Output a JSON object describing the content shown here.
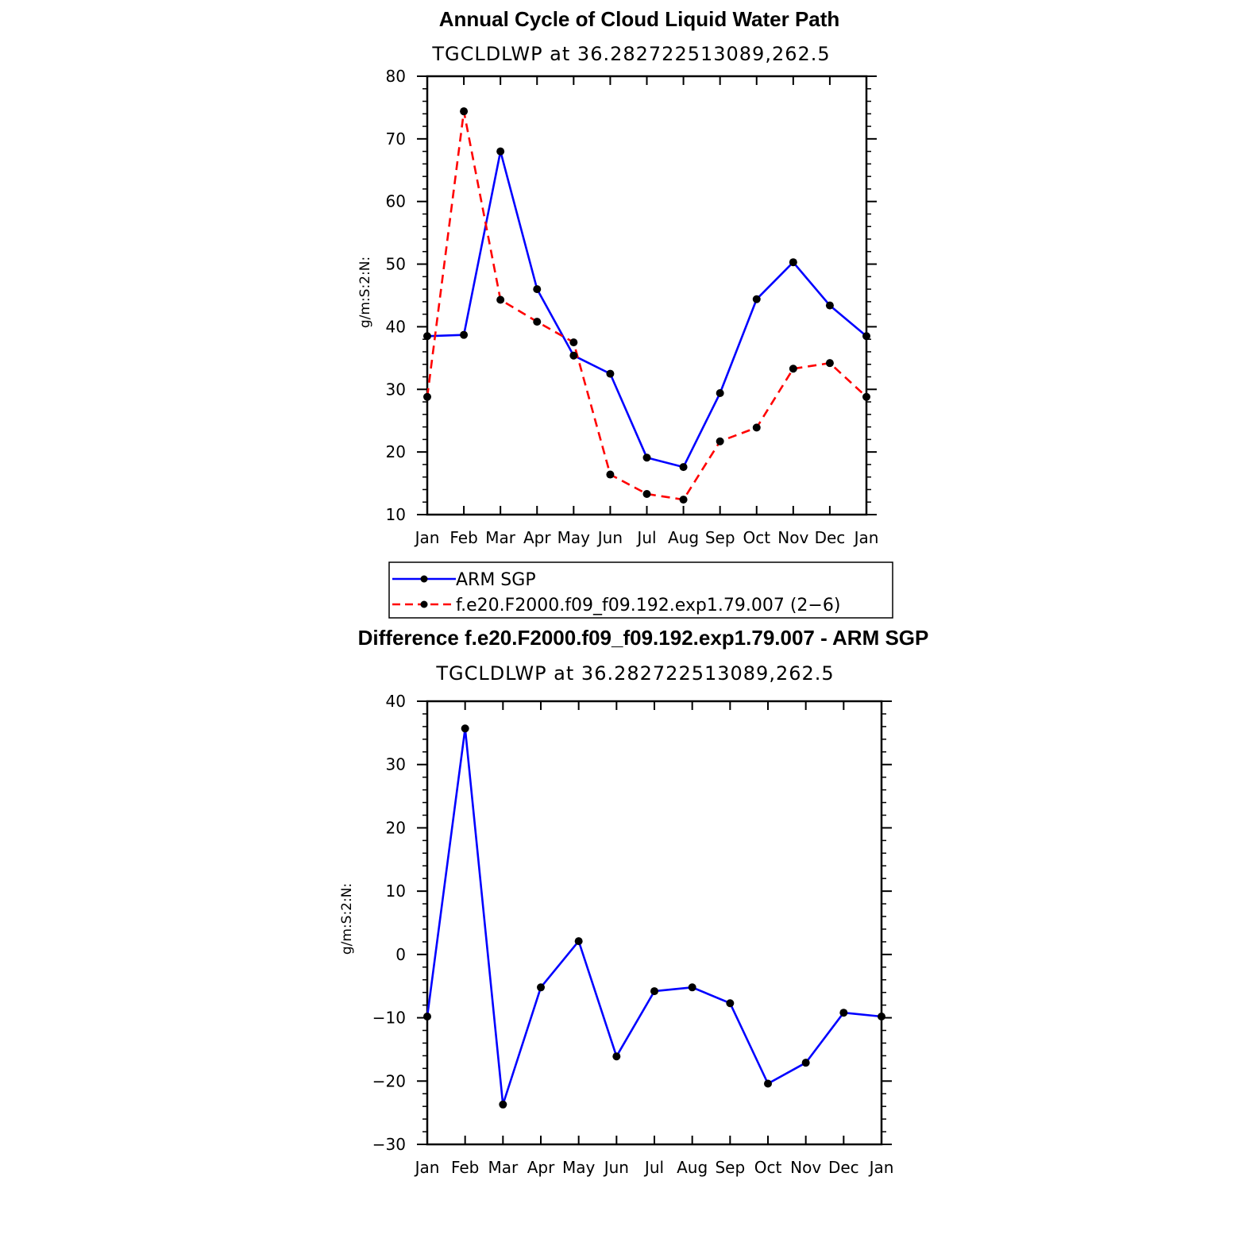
{
  "chart_data": [
    {
      "type": "line",
      "title": "Annual Cycle of Cloud Liquid Water Path",
      "subtitle": "TGCLDLWP  at  36.282722513089,262.5",
      "ylabel": "g/m:S:2:N:",
      "xlabel": "",
      "categories": [
        "Jan",
        "Feb",
        "Mar",
        "Apr",
        "May",
        "Jun",
        "Jul",
        "Aug",
        "Sep",
        "Oct",
        "Nov",
        "Dec",
        "Jan"
      ],
      "ylim": [
        10,
        80
      ],
      "yticks": [
        10,
        20,
        30,
        40,
        50,
        60,
        70,
        80
      ],
      "series": [
        {
          "name": "ARM  SGP",
          "color": "#0000ff",
          "style": "solid",
          "values": [
            38.5,
            38.7,
            68.0,
            46.0,
            35.4,
            32.5,
            19.1,
            17.6,
            29.4,
            44.4,
            50.3,
            43.4,
            38.5
          ]
        },
        {
          "name": "f.e20.F2000.f09_f09.192.exp1.79.007  (2−6)",
          "color": "#ff0000",
          "style": "dashed",
          "values": [
            28.8,
            74.4,
            44.3,
            40.8,
            37.5,
            16.4,
            13.3,
            12.4,
            21.7,
            23.9,
            33.3,
            34.2,
            28.8
          ]
        }
      ],
      "legend": "below"
    },
    {
      "type": "line",
      "title": "Difference f.e20.F2000.f09_f09.192.exp1.79.007 - ARM SGP",
      "subtitle": "TGCLDLWP  at  36.282722513089,262.5",
      "ylabel": "g/m:S:2:N:",
      "xlabel": "",
      "categories": [
        "Jan",
        "Feb",
        "Mar",
        "Apr",
        "May",
        "Jun",
        "Jul",
        "Aug",
        "Sep",
        "Oct",
        "Nov",
        "Dec",
        "Jan"
      ],
      "ylim": [
        -30,
        40
      ],
      "yticks": [
        -30,
        -20,
        -10,
        0,
        10,
        20,
        30,
        40
      ],
      "series": [
        {
          "color": "#0000ff",
          "style": "solid",
          "values": [
            -9.8,
            35.7,
            -23.7,
            -5.2,
            2.1,
            -16.1,
            -5.8,
            -5.2,
            -7.7,
            -20.4,
            -17.1,
            -9.2,
            -9.8
          ]
        }
      ]
    }
  ],
  "legend": {
    "entries": [
      {
        "label": "ARM  SGP",
        "color": "#0000ff",
        "style": "solid"
      },
      {
        "label": "f.e20.F2000.f09_f09.192.exp1.79.007  (2−6)",
        "color": "#ff0000",
        "style": "dashed"
      }
    ]
  }
}
